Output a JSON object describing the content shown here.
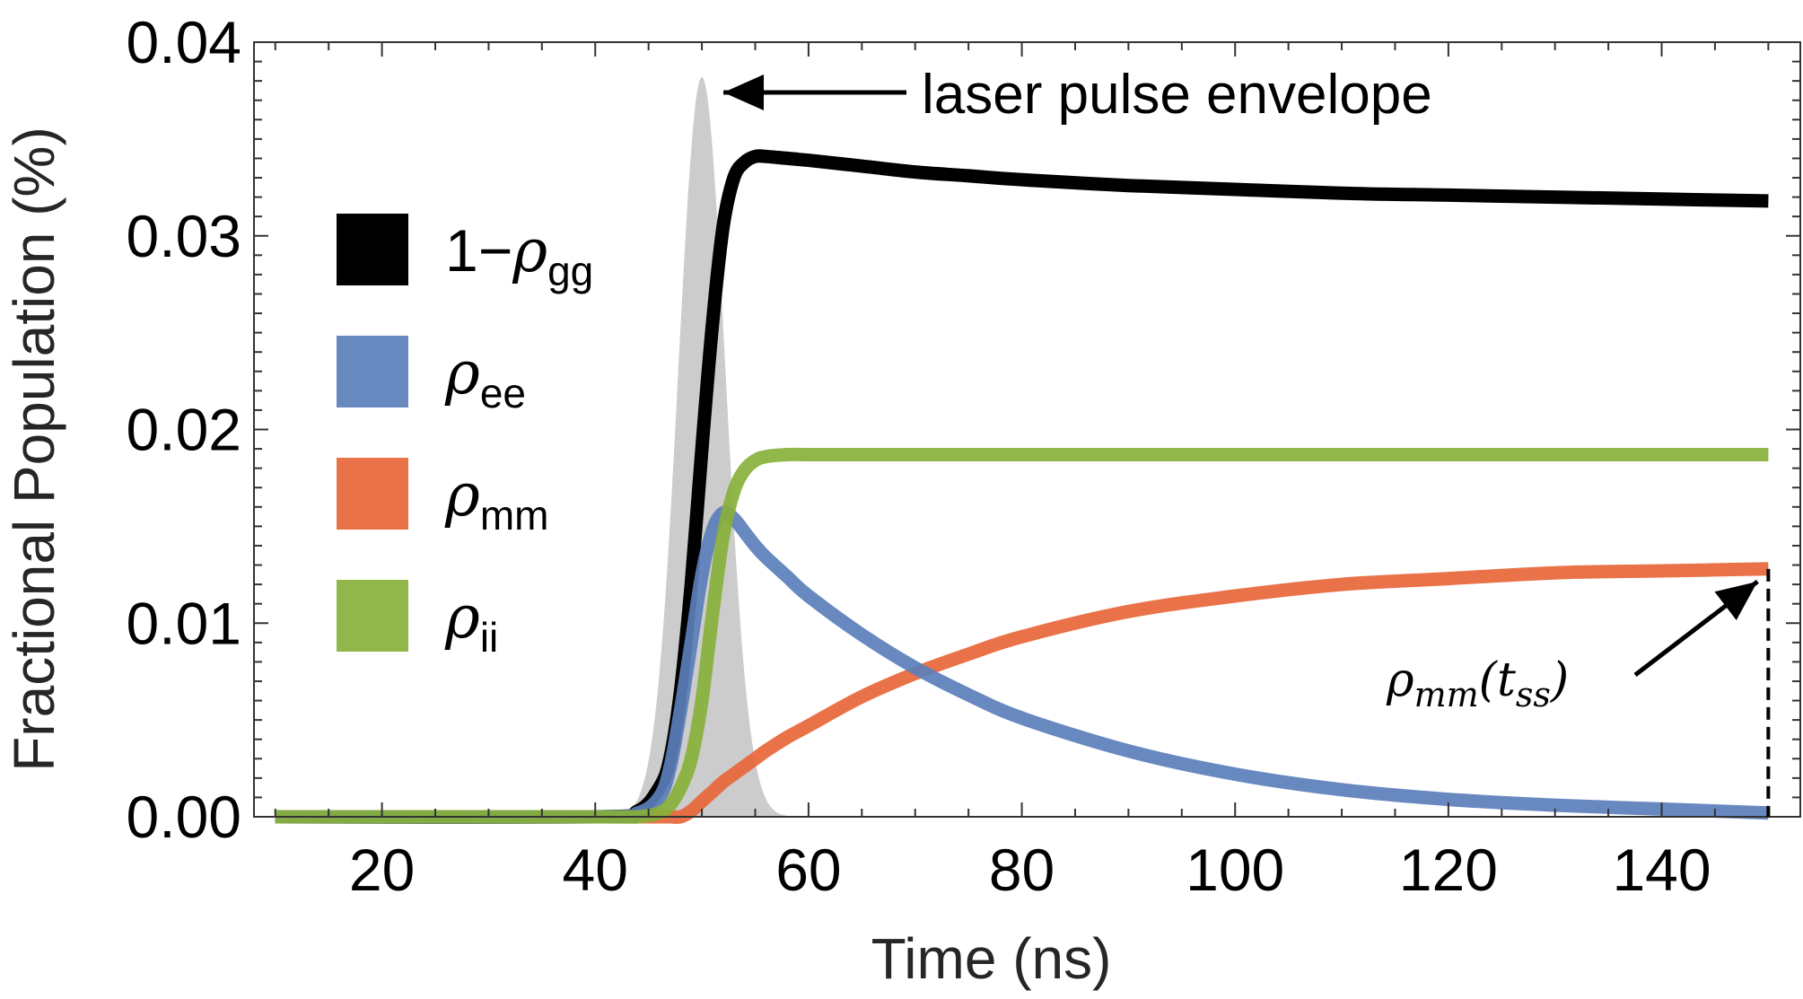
{
  "chart_data": {
    "type": "line",
    "title": "",
    "xlabel": "Time (ns)",
    "ylabel": "Fractional Population (%)",
    "xlim": [
      8,
      153
    ],
    "ylim": [
      0,
      0.04
    ],
    "x_ticks": [
      20,
      40,
      60,
      80,
      100,
      120,
      140
    ],
    "y_ticks": [
      0,
      0.01,
      0.02,
      0.03,
      0.04
    ],
    "x_tick_labels": [
      "20",
      "40",
      "60",
      "80",
      "100",
      "120",
      "140"
    ],
    "y_tick_labels": [
      "0.00",
      "0.01",
      "0.02",
      "0.03",
      "0.04"
    ],
    "grid": false,
    "legend_position": "left",
    "x": [
      10,
      40,
      44,
      46,
      47,
      48,
      49,
      50,
      51,
      52,
      53,
      54,
      55,
      56,
      58,
      60,
      65,
      70,
      75,
      80,
      90,
      100,
      110,
      120,
      130,
      140,
      150
    ],
    "series": [
      {
        "name": "1−ρgg",
        "legend_main": "1−ρ",
        "legend_sub": "gg",
        "color": "#000000",
        "values": [
          0,
          0,
          0.0003,
          0.0015,
          0.003,
          0.0065,
          0.012,
          0.019,
          0.0255,
          0.0305,
          0.033,
          0.0338,
          0.0341,
          0.0341,
          0.034,
          0.0339,
          0.0336,
          0.0333,
          0.0331,
          0.0329,
          0.0326,
          0.0324,
          0.0322,
          0.0321,
          0.032,
          0.0319,
          0.0318
        ]
      },
      {
        "name": "ρee",
        "legend_main": "ρ",
        "legend_sub": "ee",
        "color": "#5b7fbb",
        "values": [
          0,
          0,
          0.0002,
          0.001,
          0.0025,
          0.0055,
          0.009,
          0.0125,
          0.0148,
          0.0157,
          0.0154,
          0.0147,
          0.014,
          0.0134,
          0.0124,
          0.0114,
          0.0094,
          0.0077,
          0.0063,
          0.0051,
          0.0034,
          0.0022,
          0.0014,
          0.0009,
          0.0006,
          0.0004,
          0.0002
        ]
      },
      {
        "name": "ρmm",
        "legend_main": "ρ",
        "legend_sub": "mm",
        "color": "#e8663a",
        "values": [
          0,
          0,
          0,
          0,
          0,
          0,
          0.0003,
          0.0008,
          0.0013,
          0.0018,
          0.0022,
          0.0026,
          0.003,
          0.0034,
          0.0041,
          0.0047,
          0.0062,
          0.0074,
          0.0084,
          0.0093,
          0.0106,
          0.0114,
          0.012,
          0.0123,
          0.0126,
          0.0127,
          0.0128
        ]
      },
      {
        "name": "ρii",
        "legend_main": "ρ",
        "legend_sub": "ii",
        "color": "#88b03a",
        "values": [
          0,
          0,
          0,
          0.0002,
          0.0006,
          0.0015,
          0.003,
          0.006,
          0.0105,
          0.0145,
          0.0168,
          0.0179,
          0.0184,
          0.0186,
          0.0187,
          0.0187,
          0.0187,
          0.0187,
          0.0187,
          0.0187,
          0.0187,
          0.0187,
          0.0187,
          0.0187,
          0.0187,
          0.0187,
          0.0187
        ]
      }
    ],
    "pulse": {
      "label": "laser pulse envelope",
      "color": "#cccccc",
      "center": 50,
      "width": 2.2,
      "peak": 0.0382
    },
    "annotations": [
      {
        "name": "steady-state-marker",
        "label_main": "ρ",
        "label_sub": "mm",
        "label_paren_open": "(t",
        "label_paren_sub": "ss",
        "label_paren_close": ")",
        "x": 150,
        "y": 0.0128
      }
    ]
  }
}
